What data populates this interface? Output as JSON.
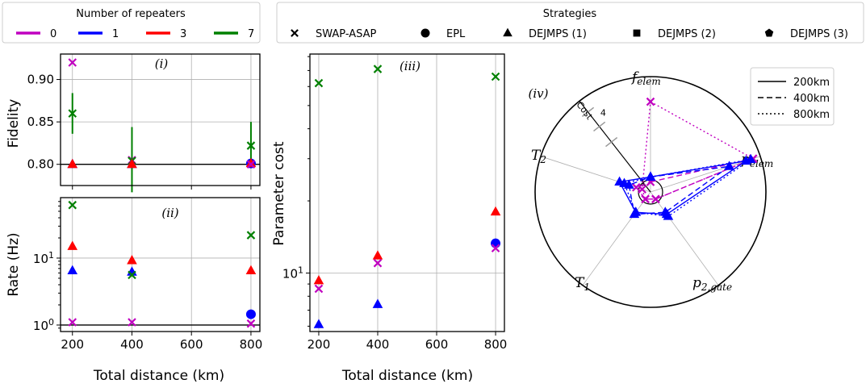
{
  "colors": {
    "0": "#c000c0",
    "1": "#0000ff",
    "3": "#ff0000",
    "7": "#008000"
  },
  "legend_repeaters": {
    "title": "Number of repeaters",
    "items": [
      {
        "label": "0",
        "color": "#c000c0"
      },
      {
        "label": "1",
        "color": "#0000ff"
      },
      {
        "label": "3",
        "color": "#ff0000"
      },
      {
        "label": "7",
        "color": "#008000"
      }
    ]
  },
  "legend_strategies": {
    "title": "Strategies",
    "items": [
      {
        "label": "SWAP-ASAP",
        "marker": "x"
      },
      {
        "label": "EPL",
        "marker": "circle"
      },
      {
        "label": "DEJMPS (1)",
        "marker": "triangle"
      },
      {
        "label": "DEJMPS (2)",
        "marker": "square"
      },
      {
        "label": "DEJMPS (3)",
        "marker": "pentagon"
      }
    ]
  },
  "chart_data": [
    {
      "type": "scatter",
      "panel": "(i)",
      "ylabel": "Fidelity",
      "xlim": [
        160,
        830
      ],
      "ylim": [
        0.775,
        0.93
      ],
      "xticks": [
        200,
        400,
        600,
        800
      ],
      "yticks": [
        0.8,
        0.85,
        0.9
      ],
      "ytick_labels": [
        "0.80",
        "0.85",
        "0.90"
      ],
      "reference_line": 0.8,
      "points": [
        {
          "x": 200,
          "y": 0.92,
          "repeaters": "0",
          "marker": "x"
        },
        {
          "x": 200,
          "y": 0.86,
          "repeaters": "7",
          "marker": "x",
          "err": [
            0.836,
            0.884
          ]
        },
        {
          "x": 200,
          "y": 0.8,
          "repeaters": "1",
          "marker": "triangle"
        },
        {
          "x": 200,
          "y": 0.8,
          "repeaters": "3",
          "marker": "triangle"
        },
        {
          "x": 400,
          "y": 0.805,
          "repeaters": "0",
          "marker": "x"
        },
        {
          "x": 400,
          "y": 0.804,
          "repeaters": "7",
          "marker": "x",
          "err": [
            0.767,
            0.844
          ]
        },
        {
          "x": 400,
          "y": 0.8,
          "repeaters": "1",
          "marker": "triangle"
        },
        {
          "x": 400,
          "y": 0.8,
          "repeaters": "3",
          "marker": "triangle"
        },
        {
          "x": 800,
          "y": 0.822,
          "repeaters": "7",
          "marker": "x",
          "err": [
            0.798,
            0.85
          ]
        },
        {
          "x": 800,
          "y": 0.801,
          "repeaters": "1",
          "marker": "circle"
        },
        {
          "x": 800,
          "y": 0.801,
          "repeaters": "3",
          "marker": "triangle"
        },
        {
          "x": 800,
          "y": 0.8,
          "repeaters": "0",
          "marker": "x"
        }
      ]
    },
    {
      "type": "scatter",
      "panel": "(ii)",
      "ylabel": "Rate (Hz)",
      "xlabel": "Total distance (km)",
      "yscale": "log",
      "xlim": [
        160,
        830
      ],
      "ylim": [
        0.8,
        80
      ],
      "xticks": [
        200,
        400,
        600,
        800
      ],
      "yticks": [
        1,
        10
      ],
      "ytick_labels": [
        "10^0",
        "10^1"
      ],
      "reference_line": 1,
      "points": [
        {
          "x": 200,
          "y": 62,
          "repeaters": "7",
          "marker": "x"
        },
        {
          "x": 200,
          "y": 15,
          "repeaters": "3",
          "marker": "triangle"
        },
        {
          "x": 200,
          "y": 6.5,
          "repeaters": "1",
          "marker": "triangle"
        },
        {
          "x": 200,
          "y": 1.1,
          "repeaters": "0",
          "marker": "x"
        },
        {
          "x": 400,
          "y": 9.2,
          "repeaters": "3",
          "marker": "triangle"
        },
        {
          "x": 400,
          "y": 6.2,
          "repeaters": "1",
          "marker": "triangle"
        },
        {
          "x": 400,
          "y": 5.6,
          "repeaters": "7",
          "marker": "x"
        },
        {
          "x": 400,
          "y": 1.1,
          "repeaters": "0",
          "marker": "x"
        },
        {
          "x": 800,
          "y": 22,
          "repeaters": "7",
          "marker": "x"
        },
        {
          "x": 800,
          "y": 6.5,
          "repeaters": "3",
          "marker": "triangle"
        },
        {
          "x": 800,
          "y": 1.45,
          "repeaters": "1",
          "marker": "circle"
        },
        {
          "x": 800,
          "y": 1.05,
          "repeaters": "0",
          "marker": "x"
        }
      ]
    },
    {
      "type": "scatter",
      "panel": "(iii)",
      "ylabel": "Parameter cost",
      "xlabel": "Total distance (km)",
      "yscale": "log",
      "xlim": [
        170,
        830
      ],
      "ylim": [
        5.7,
        82
      ],
      "xticks": [
        200,
        400,
        600,
        800
      ],
      "yticks": [
        10
      ],
      "ytick_labels": [
        "10^1"
      ],
      "points": [
        {
          "x": 200,
          "y": 62,
          "repeaters": "7",
          "marker": "x"
        },
        {
          "x": 200,
          "y": 9.3,
          "repeaters": "3",
          "marker": "triangle"
        },
        {
          "x": 200,
          "y": 8.6,
          "repeaters": "0",
          "marker": "x"
        },
        {
          "x": 200,
          "y": 6.1,
          "repeaters": "1",
          "marker": "triangle"
        },
        {
          "x": 400,
          "y": 71,
          "repeaters": "7",
          "marker": "x"
        },
        {
          "x": 400,
          "y": 11.8,
          "repeaters": "3",
          "marker": "triangle"
        },
        {
          "x": 400,
          "y": 11.0,
          "repeaters": "0",
          "marker": "x"
        },
        {
          "x": 400,
          "y": 7.4,
          "repeaters": "1",
          "marker": "triangle"
        },
        {
          "x": 800,
          "y": 66,
          "repeaters": "7",
          "marker": "x"
        },
        {
          "x": 800,
          "y": 18.0,
          "repeaters": "3",
          "marker": "triangle"
        },
        {
          "x": 800,
          "y": 13.3,
          "repeaters": "1",
          "marker": "circle"
        },
        {
          "x": 800,
          "y": 12.7,
          "repeaters": "0",
          "marker": "x"
        }
      ]
    },
    {
      "type": "radar",
      "panel": "(iv)",
      "axes": [
        "f_elem",
        "p_elem",
        "p_2,gate",
        "T_1",
        "T_2"
      ],
      "axis_label_text": {
        "f": "f",
        "f_sub": "elem",
        "p": "p",
        "p_sub": "elem",
        "p2": "p",
        "p2_sub": "2,gate",
        "t1": "T",
        "t1_sub": "1",
        "t2": "T",
        "t2_sub": "2"
      },
      "cost_label": "Cost",
      "cost_ticks": [
        "1",
        "4"
      ],
      "legend": [
        {
          "label": "200km",
          "dash": "solid"
        },
        {
          "label": "400km",
          "dash": "dashed"
        },
        {
          "label": "800km",
          "dash": "dotted"
        }
      ],
      "series": [
        {
          "repeaters": "0",
          "distance": "800km",
          "marker": "x",
          "values": [
            3.6,
            4.3,
            0.35,
            0.35,
            0.35
          ]
        },
        {
          "repeaters": "0",
          "distance": "400km",
          "marker": "x",
          "values": [
            0.4,
            4.3,
            0.35,
            0.35,
            0.6
          ]
        },
        {
          "repeaters": "1",
          "distance": "200km",
          "marker": "triangle",
          "values": [
            0.6,
            4.0,
            1.1,
            1.0,
            1.3
          ]
        },
        {
          "repeaters": "1",
          "distance": "400km",
          "marker": "triangle",
          "values": [
            0.6,
            3.3,
            1.0,
            1.1,
            0.9
          ]
        },
        {
          "repeaters": "1",
          "distance": "800km",
          "marker": "triangle",
          "values": [
            0.6,
            4.2,
            1.2,
            1.0,
            1.1
          ]
        }
      ]
    }
  ]
}
